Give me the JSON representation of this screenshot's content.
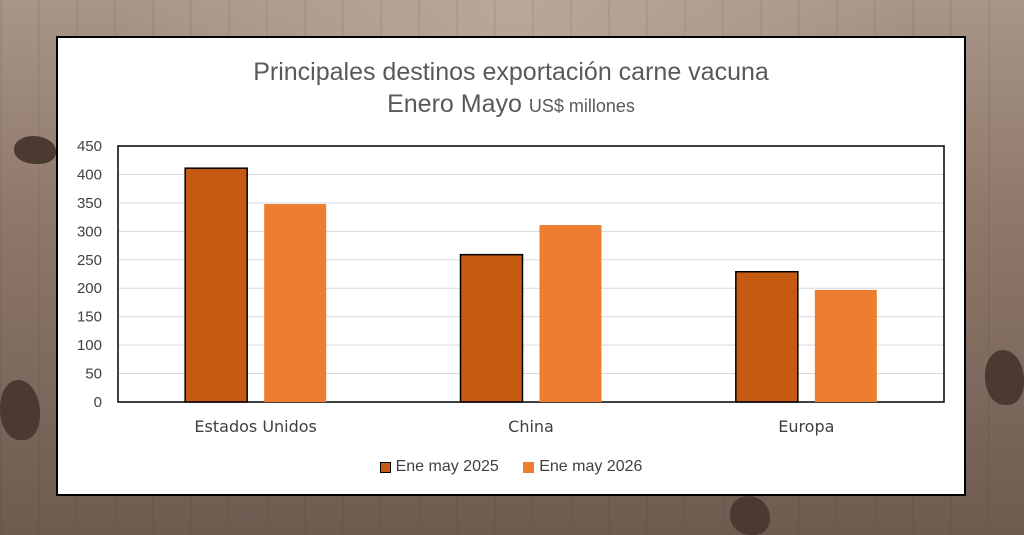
{
  "chart_data": {
    "type": "bar",
    "title": "Principales  destinos exportación  carne vacuna",
    "subtitle": "Enero Mayo",
    "unit": "US$ millones",
    "categories": [
      "Estados Unidos",
      "China",
      "Europa"
    ],
    "series": [
      {
        "name": "Ene may 2025",
        "values": [
          411,
          259,
          229
        ],
        "color": "#C55A11",
        "outline": "#000000"
      },
      {
        "name": "Ene may 2026",
        "values": [
          348,
          311,
          197
        ],
        "color": "#ED7D31"
      }
    ],
    "ylim": [
      0,
      450
    ],
    "yticks": [
      0,
      50,
      100,
      150,
      200,
      250,
      300,
      350,
      400,
      450
    ],
    "grid": true,
    "legend_position": "bottom"
  }
}
